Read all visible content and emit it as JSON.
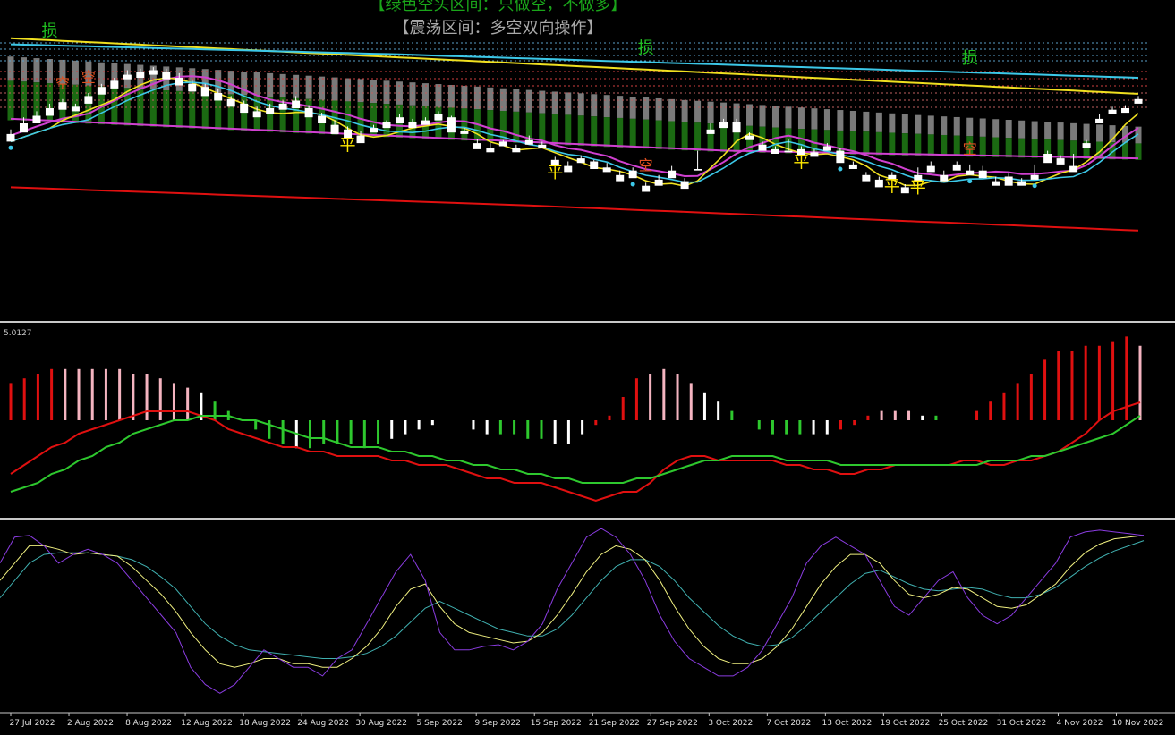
{
  "header": {
    "top_banner": "【绿色空头区间：只做空，不做多】",
    "range_banner": "【震荡区间：多空双向操作】"
  },
  "colors": {
    "background": "#000000",
    "bull_candle": "#e8101c",
    "bear_candle": "#ffffff",
    "cloud_green": "#1b6a12",
    "cloud_gray": "#7a7a7a",
    "ma_cyan": "#3cc8e8",
    "ma_yellow": "#f0e020",
    "band_magenta": "#d040d0",
    "long_ma_red": "#e01010",
    "macd_red": "#e01010",
    "macd_pink": "#f4b4c0",
    "macd_green": "#2ec82e",
    "kdj_purple": "#8a3ce0",
    "kdj_yellow": "#f0f080",
    "kdj_cyan": "#40b0b0",
    "signal_yellow": "#ffe800",
    "signal_green": "#20c020",
    "signal_red": "#e05020"
  },
  "chart_data": {
    "type": "candlestick",
    "x_labels": [
      "27 Jul 2022",
      "2 Aug 2022",
      "8 Aug 2022",
      "12 Aug 2022",
      "18 Aug 2022",
      "24 Aug 2022",
      "30 Aug 2022",
      "5 Sep 2022",
      "9 Sep 2022",
      "15 Sep 2022",
      "21 Sep 2022",
      "27 Sep 2022",
      "3 Oct 2022",
      "7 Oct 2022",
      "13 Oct 2022",
      "19 Oct 2022",
      "25 Oct 2022",
      "31 Oct 2022",
      "4 Nov 2022",
      "10 Nov 2022"
    ],
    "main_price_min": 0,
    "main_price_max": 100,
    "candles": [
      [
        13,
        16,
        9,
        8
      ],
      [
        20,
        24,
        15,
        14
      ],
      [
        25,
        28,
        22,
        20
      ],
      [
        30,
        33,
        27,
        25
      ],
      [
        34,
        36,
        31,
        29
      ],
      [
        31,
        33,
        28,
        28
      ],
      [
        38,
        40,
        35,
        33
      ],
      [
        44,
        46,
        40,
        39
      ],
      [
        48,
        50,
        45,
        43
      ],
      [
        52,
        55,
        50,
        49
      ],
      [
        54,
        56,
        51,
        50
      ],
      [
        55,
        57,
        53,
        52
      ],
      [
        54,
        56,
        51,
        49
      ],
      [
        50,
        53,
        46,
        45
      ],
      [
        46,
        49,
        42,
        41
      ],
      [
        44,
        46,
        40,
        38
      ],
      [
        40,
        43,
        36,
        35
      ],
      [
        36,
        38,
        32,
        31
      ],
      [
        33,
        35,
        28,
        27
      ],
      [
        28,
        31,
        25,
        24
      ],
      [
        30,
        33,
        27,
        26
      ],
      [
        33,
        35,
        30,
        29
      ],
      [
        35,
        38,
        31,
        30
      ],
      [
        30,
        32,
        25,
        24
      ],
      [
        25,
        27,
        21,
        20
      ],
      [
        19,
        22,
        15,
        13
      ],
      [
        16,
        18,
        11,
        10
      ],
      [
        12,
        15,
        8,
        7
      ],
      [
        17,
        19,
        15,
        14
      ],
      [
        21,
        22,
        18,
        17
      ],
      [
        24,
        26,
        21,
        20
      ],
      [
        21,
        23,
        18,
        17
      ],
      [
        22,
        24,
        20,
        19
      ],
      [
        26,
        28,
        23,
        22
      ],
      [
        24,
        25,
        15,
        14
      ],
      [
        15,
        17,
        14,
        13
      ],
      [
        7,
        10,
        4,
        3
      ],
      [
        4,
        7,
        2,
        1
      ],
      [
        8,
        9,
        6,
        5
      ],
      [
        4,
        6,
        3,
        1
      ],
      [
        9,
        12,
        7,
        6
      ],
      [
        6,
        8,
        5,
        4
      ],
      [
        -4,
        -2,
        -7,
        -8
      ],
      [
        -8,
        -5,
        -11,
        -12
      ],
      [
        -3,
        -1,
        -6,
        -6
      ],
      [
        -5,
        -4,
        -9,
        -10
      ],
      [
        -9,
        -6,
        -11,
        -12
      ],
      [
        -14,
        -11,
        -17,
        -18
      ],
      [
        -11,
        -9,
        -15,
        -16
      ],
      [
        -21,
        -19,
        -24,
        -25
      ],
      [
        -17,
        -14,
        -20,
        -21
      ],
      [
        -11,
        -8,
        -15,
        -16
      ],
      [
        -18,
        -16,
        -22,
        -23
      ],
      [
        -10,
        2,
        -10,
        -11
      ],
      [
        16,
        20,
        14,
        13
      ],
      [
        21,
        23,
        18,
        17
      ],
      [
        21,
        23,
        15,
        14
      ],
      [
        12,
        14,
        10,
        9
      ],
      [
        6,
        8,
        3,
        2
      ],
      [
        3,
        5,
        1,
        0
      ],
      [
        2,
        10,
        2,
        1
      ],
      [
        3,
        5,
        0,
        -1
      ],
      [
        1,
        3,
        -1,
        -2
      ],
      [
        5,
        7,
        3,
        2
      ],
      [
        2,
        4,
        -5,
        -6
      ],
      [
        -7,
        -5,
        -9,
        -10
      ],
      [
        -14,
        -12,
        -17,
        -18
      ],
      [
        -17,
        -15,
        -21,
        -22
      ],
      [
        -14,
        -12,
        -16,
        -17
      ],
      [
        -22,
        -20,
        -25,
        -26
      ],
      [
        -14,
        -9,
        -17,
        -18
      ],
      [
        -8,
        -5,
        -11,
        -12
      ],
      [
        -14,
        -11,
        -17,
        -18
      ],
      [
        -7,
        -5,
        -10,
        -11
      ],
      [
        -11,
        -7,
        -13,
        -14
      ],
      [
        -11,
        -8,
        -15,
        -16
      ],
      [
        -18,
        -15,
        -20,
        -21
      ],
      [
        -15,
        -13,
        -20,
        -21
      ],
      [
        -18,
        -16,
        -20,
        -21
      ],
      [
        -14,
        -7,
        -16,
        -17
      ],
      [
        0,
        2,
        -5,
        -6
      ],
      [
        -3,
        -1,
        -6,
        -7
      ],
      [
        -8,
        0,
        -11,
        -12
      ],
      [
        7,
        9,
        5,
        4
      ],
      [
        23,
        26,
        21,
        20
      ],
      [
        29,
        31,
        27,
        26
      ],
      [
        30,
        32,
        28,
        27
      ],
      [
        36,
        38,
        34,
        33
      ]
    ],
    "macd": [
      8,
      9,
      10,
      11,
      11,
      11,
      11,
      11,
      11,
      10,
      10,
      9,
      8,
      7,
      6,
      4,
      2,
      0,
      -2,
      -4,
      -5,
      -6,
      -6,
      -5,
      -5,
      -5,
      -6,
      -5,
      -4,
      -3,
      -2,
      -1,
      0,
      0,
      -2,
      -3,
      -3,
      -3,
      -4,
      -4,
      -5,
      -5,
      -3,
      -1,
      1,
      5,
      9,
      10,
      11,
      10,
      8,
      6,
      4,
      2,
      0,
      -2,
      -3,
      -3,
      -3,
      -3,
      -3,
      -2,
      -1,
      1,
      2,
      2,
      2,
      1,
      1,
      0,
      0,
      2,
      4,
      6,
      8,
      10,
      13,
      15,
      15,
      16,
      16,
      17,
      18,
      16
    ],
    "macd_colors": [
      "r",
      "r",
      "r",
      "r",
      "p",
      "p",
      "p",
      "p",
      "p",
      "p",
      "p",
      "p",
      "p",
      "p",
      "w",
      "g",
      "g",
      "g",
      "g",
      "g",
      "g",
      "w",
      "g",
      "g",
      "g",
      "g",
      "g",
      "g",
      "w",
      "w",
      "w",
      "w",
      "w",
      "r",
      "w",
      "w",
      "g",
      "g",
      "g",
      "g",
      "w",
      "w",
      "w",
      "r",
      "r",
      "r",
      "r",
      "p",
      "p",
      "p",
      "p",
      "w",
      "w",
      "g",
      "g",
      "g",
      "g",
      "g",
      "g",
      "w",
      "w",
      "r",
      "r",
      "r",
      "p",
      "p",
      "p",
      "w",
      "g",
      "r",
      "r",
      "r",
      "r",
      "r",
      "r",
      "r",
      "r",
      "r",
      "r",
      "r",
      "r",
      "r",
      "r",
      "p"
    ],
    "dif_line": [
      -6,
      -4,
      -2,
      0,
      1,
      3,
      4,
      5,
      6,
      7,
      8,
      8,
      8,
      8,
      7,
      6,
      4,
      3,
      2,
      1,
      0,
      0,
      -1,
      -1,
      -2,
      -2,
      -2,
      -2,
      -3,
      -3,
      -4,
      -4,
      -4,
      -5,
      -6,
      -7,
      -7,
      -8,
      -8,
      -8,
      -9,
      -10,
      -11,
      -12,
      -11,
      -10,
      -10,
      -8,
      -5,
      -3,
      -2,
      -2,
      -3,
      -3,
      -3,
      -3,
      -3,
      -4,
      -4,
      -5,
      -5,
      -6,
      -6,
      -5,
      -5,
      -4,
      -4,
      -4,
      -4,
      -4,
      -3,
      -3,
      -4,
      -4,
      -3,
      -3,
      -2,
      -1,
      1,
      3,
      6,
      8,
      9,
      10
    ],
    "dea_line": [
      -10,
      -9,
      -8,
      -6,
      -5,
      -3,
      -2,
      0,
      1,
      3,
      4,
      5,
      6,
      6,
      7,
      7,
      7,
      6,
      6,
      5,
      4,
      3,
      2,
      2,
      1,
      0,
      0,
      0,
      -1,
      -1,
      -2,
      -2,
      -3,
      -3,
      -4,
      -4,
      -5,
      -5,
      -6,
      -6,
      -7,
      -7,
      -8,
      -8,
      -8,
      -8,
      -7,
      -7,
      -6,
      -5,
      -4,
      -3,
      -3,
      -2,
      -2,
      -2,
      -2,
      -3,
      -3,
      -3,
      -3,
      -4,
      -4,
      -4,
      -4,
      -4,
      -4,
      -4,
      -4,
      -4,
      -4,
      -4,
      -3,
      -3,
      -3,
      -2,
      -2,
      -1,
      0,
      1,
      2,
      3,
      5,
      7
    ],
    "macd_label": "5.0127",
    "kdj_k": [
      80,
      95,
      96,
      90,
      80,
      85,
      88,
      85,
      80,
      70,
      60,
      50,
      40,
      20,
      10,
      5,
      10,
      20,
      30,
      25,
      20,
      20,
      15,
      25,
      30,
      45,
      60,
      75,
      85,
      70,
      40,
      30,
      30,
      32,
      33,
      30,
      35,
      45,
      65,
      80,
      95,
      100,
      95,
      85,
      70,
      50,
      35,
      25,
      20,
      15,
      15,
      20,
      30,
      45,
      60,
      80,
      90,
      95,
      90,
      85,
      70,
      55,
      50,
      60,
      70,
      75,
      60,
      50,
      45,
      50,
      60,
      70,
      80,
      95,
      98,
      99,
      98,
      97,
      96
    ],
    "kdj_d": [
      70,
      80,
      90,
      90,
      88,
      85,
      86,
      85,
      84,
      78,
      70,
      62,
      52,
      40,
      30,
      22,
      20,
      22,
      25,
      25,
      22,
      22,
      20,
      20,
      25,
      32,
      42,
      55,
      65,
      68,
      55,
      45,
      40,
      38,
      36,
      34,
      35,
      40,
      50,
      62,
      75,
      85,
      90,
      88,
      82,
      70,
      55,
      42,
      32,
      25,
      22,
      22,
      25,
      32,
      42,
      55,
      68,
      78,
      85,
      85,
      80,
      70,
      62,
      60,
      62,
      66,
      65,
      60,
      55,
      54,
      56,
      62,
      68,
      78,
      86,
      91,
      94,
      95,
      96
    ],
    "kdj_j": [
      60,
      70,
      80,
      85,
      86,
      86,
      86,
      85,
      84,
      82,
      78,
      72,
      65,
      55,
      45,
      38,
      33,
      30,
      29,
      28,
      27,
      26,
      25,
      25,
      26,
      28,
      32,
      38,
      46,
      54,
      58,
      54,
      50,
      46,
      42,
      40,
      38,
      38,
      42,
      50,
      60,
      70,
      78,
      82,
      82,
      78,
      70,
      60,
      52,
      44,
      38,
      34,
      32,
      33,
      37,
      44,
      52,
      60,
      68,
      74,
      76,
      72,
      68,
      65,
      64,
      65,
      66,
      65,
      62,
      60,
      60,
      62,
      66,
      72,
      78,
      83,
      87,
      90,
      93
    ],
    "signals": {
      "kong_label": "空",
      "sun_label": "损",
      "ping_label": "平"
    }
  }
}
